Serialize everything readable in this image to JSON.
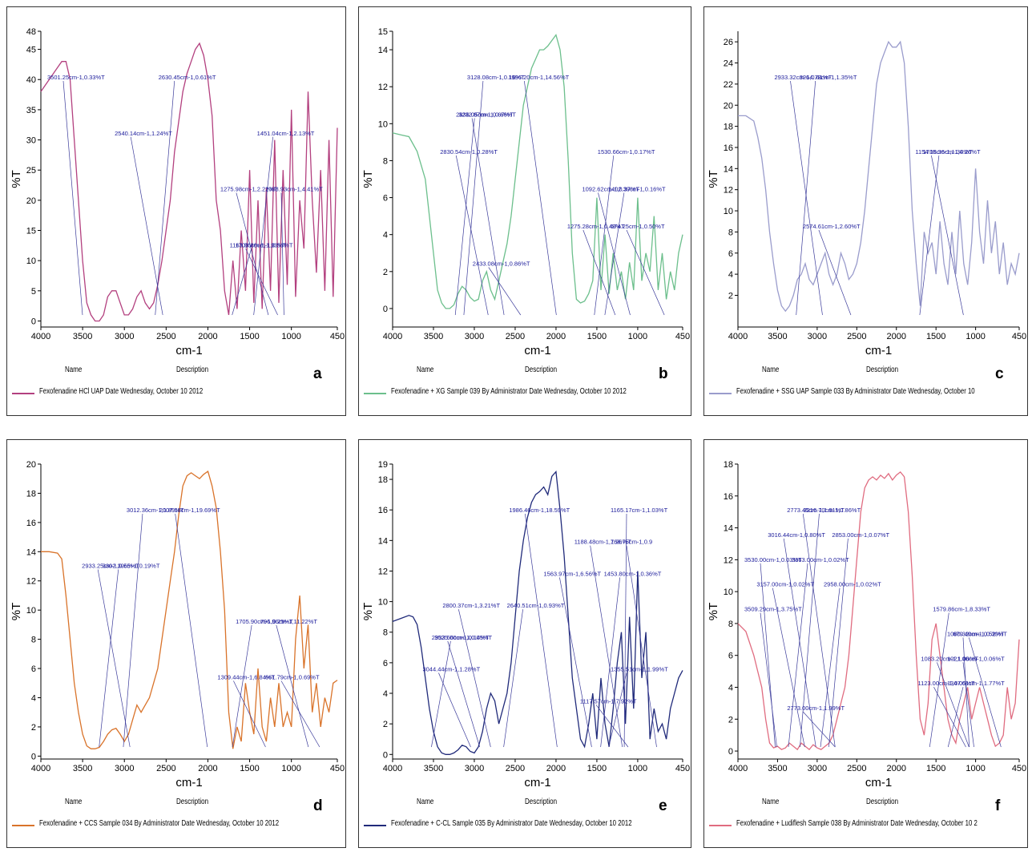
{
  "footer_labels": {
    "name": "Name",
    "description": "Description"
  },
  "chart_data": [
    {
      "type": "line",
      "letter": "a",
      "color": "#b3407f",
      "legend": "Fexofenadine HCl    UAP Date Wednesday, October 10 2012",
      "xlabel": "cm-1",
      "ylabel": "%T",
      "xlim": [
        4000,
        450
      ],
      "ylim": [
        -1,
        48
      ],
      "xticks": [
        "4000",
        "3500",
        "3000",
        "2500",
        "2000",
        "1500",
        "1000",
        "450"
      ],
      "yticks": [
        "0",
        "5",
        "10",
        "15",
        "20",
        "25",
        "30",
        "35",
        "40",
        "45",
        "48"
      ],
      "x": [
        4000,
        3900,
        3800,
        3750,
        3700,
        3650,
        3600,
        3550,
        3500,
        3450,
        3400,
        3350,
        3300,
        3250,
        3200,
        3150,
        3100,
        3050,
        3000,
        2950,
        2900,
        2850,
        2800,
        2750,
        2700,
        2650,
        2600,
        2550,
        2500,
        2450,
        2400,
        2350,
        2300,
        2250,
        2200,
        2150,
        2100,
        2050,
        2000,
        1950,
        1900,
        1850,
        1800,
        1750,
        1700,
        1650,
        1600,
        1550,
        1500,
        1450,
        1400,
        1350,
        1300,
        1250,
        1200,
        1150,
        1100,
        1050,
        1000,
        950,
        900,
        850,
        800,
        750,
        700,
        650,
        600,
        550,
        500,
        450
      ],
      "y": [
        38,
        40,
        42,
        43,
        43,
        40,
        30,
        20,
        10,
        3,
        1,
        0,
        0,
        1,
        4,
        5,
        5,
        3,
        1,
        1,
        2,
        4,
        5,
        3,
        2,
        3,
        6,
        10,
        15,
        20,
        28,
        33,
        38,
        41,
        43,
        45,
        46,
        44,
        40,
        34,
        20,
        15,
        5,
        1,
        10,
        2,
        15,
        5,
        25,
        3,
        20,
        2,
        22,
        5,
        30,
        3,
        25,
        6,
        35,
        4,
        20,
        12,
        38,
        20,
        8,
        25,
        5,
        30,
        4,
        32
      ],
      "annotations": [
        "3501.25cm-1,0.33%T",
        "2630.45cm-1,0.61%T",
        "2540.14cm-1,1.24%T",
        "1451.04cm-1,2.13%T",
        "1275.98cm-1,2.22%T",
        "1088.93cm-1,4.41%T",
        "1163.96cm-1,1.93%T",
        "1709.86cm-1,0.53%T"
      ]
    },
    {
      "type": "line",
      "letter": "b",
      "color": "#6cbf8c",
      "legend": "Fexofenadine + XG    Sample 039 By Administrator Date Wednesday, October 10 2012",
      "xlabel": "cm-1",
      "ylabel": "%T",
      "xlim": [
        4000,
        450
      ],
      "ylim": [
        -1,
        15
      ],
      "xticks": [
        "4000",
        "3500",
        "3000",
        "2500",
        "2000",
        "1500",
        "1000",
        "450"
      ],
      "yticks": [
        "0",
        "2",
        "4",
        "6",
        "8",
        "10",
        "12",
        "14",
        "15"
      ],
      "x": [
        4000,
        3900,
        3800,
        3700,
        3600,
        3550,
        3500,
        3450,
        3400,
        3350,
        3300,
        3250,
        3200,
        3150,
        3100,
        3050,
        3000,
        2950,
        2900,
        2850,
        2800,
        2750,
        2700,
        2650,
        2600,
        2550,
        2500,
        2450,
        2400,
        2350,
        2300,
        2250,
        2200,
        2150,
        2100,
        2050,
        2000,
        1950,
        1900,
        1850,
        1800,
        1750,
        1700,
        1650,
        1600,
        1550,
        1500,
        1450,
        1400,
        1350,
        1300,
        1250,
        1200,
        1150,
        1100,
        1050,
        1000,
        950,
        900,
        850,
        800,
        750,
        700,
        650,
        600,
        550,
        500,
        450
      ],
      "y": [
        9.5,
        9.4,
        9.3,
        8.5,
        7,
        5,
        3,
        1,
        0.3,
        0,
        0,
        0.2,
        0.8,
        1.2,
        1,
        0.6,
        0.4,
        0.5,
        1.5,
        2,
        1,
        0.5,
        1.5,
        2.5,
        3.5,
        5,
        7,
        9,
        11,
        12,
        13,
        13.5,
        14,
        14,
        14.2,
        14.5,
        14.8,
        14,
        12,
        8,
        3,
        0.5,
        0.3,
        0.4,
        0.8,
        1.5,
        6,
        1,
        4,
        0.8,
        3,
        1,
        2,
        0.5,
        2.5,
        1,
        6,
        1.5,
        3,
        2,
        5,
        1,
        3,
        0.5,
        2,
        1,
        3,
        4
      ],
      "annotations": [
        "1996.20cm-1,14.56%T",
        "3128.08cm-1,0.16%T",
        "2636.05cm-1,0.67%T",
        "3232.87cm-1,0.66%T",
        "2830.54cm-1,0.28%T",
        "1530.66cm-1,0.17%T",
        "1092.62cm-1,0.37%T",
        "1402.39cm-1,0.16%T",
        "1275.28cm-1,0.48%T",
        "674.25cm-1,0.50%T",
        "2433.08cm-1,0.86%T"
      ]
    },
    {
      "type": "line",
      "letter": "c",
      "color": "#9a9ccc",
      "legend": "Fexofenadine + SSG    UAP Sample 033 By Administrator Date Wednesday, October 10",
      "xlabel": "cm-1",
      "ylabel": "%T",
      "xlim": [
        4000,
        450
      ],
      "ylim": [
        -1,
        27
      ],
      "xticks": [
        "4000",
        "3500",
        "3000",
        "2500",
        "2000",
        "1500",
        "1000",
        "450"
      ],
      "yticks": [
        "2",
        "4",
        "6",
        "8",
        "10",
        "12",
        "14",
        "16",
        "18",
        "20",
        "22",
        "24",
        "26"
      ],
      "x": [
        4000,
        3900,
        3800,
        3750,
        3700,
        3650,
        3600,
        3550,
        3500,
        3450,
        3400,
        3350,
        3300,
        3250,
        3200,
        3150,
        3100,
        3050,
        3000,
        2950,
        2900,
        2850,
        2800,
        2750,
        2700,
        2650,
        2600,
        2550,
        2500,
        2450,
        2400,
        2350,
        2300,
        2250,
        2200,
        2150,
        2100,
        2050,
        2000,
        1950,
        1900,
        1850,
        1800,
        1750,
        1700,
        1650,
        1600,
        1550,
        1500,
        1450,
        1400,
        1350,
        1300,
        1250,
        1200,
        1150,
        1100,
        1050,
        1000,
        950,
        900,
        850,
        800,
        750,
        700,
        650,
        600,
        550,
        500,
        450
      ],
      "y": [
        19,
        19,
        18.5,
        17,
        15,
        12,
        8,
        5,
        2.5,
        1,
        0.5,
        1,
        2,
        3.5,
        4,
        5,
        3.5,
        3,
        4,
        5,
        6,
        4,
        3,
        4,
        6,
        5,
        3.5,
        4,
        5,
        7,
        10,
        14,
        18,
        22,
        24,
        25,
        26,
        25.5,
        25.5,
        26,
        24,
        18,
        10,
        5,
        1,
        8,
        6,
        7,
        4,
        9,
        5,
        3,
        8,
        4,
        10,
        5,
        3,
        7,
        14,
        8,
        5,
        11,
        6,
        9,
        4,
        7,
        3,
        5,
        4,
        6
      ],
      "annotations": [
        "2933.32cm-1,0.61%T",
        "3264.78cm-1,1.35%T",
        "1154.18cm-1,1.34%T",
        "1705.36cm-1,0.26%T",
        "2574.61cm-1,2.60%T"
      ]
    },
    {
      "type": "line",
      "letter": "d",
      "color": "#d9732a",
      "legend": "Fexofenadine + CCS    Sample 034 By Administrator Date Wednesday, October 10 2012",
      "xlabel": "cm-1",
      "ylabel": "%T",
      "xlim": [
        4000,
        450
      ],
      "ylim": [
        -0.2,
        20
      ],
      "xticks": [
        "4000",
        "3500",
        "3000",
        "2500",
        "2000",
        "1500",
        "1000",
        "450"
      ],
      "yticks": [
        "0",
        "2",
        "4",
        "6",
        "8",
        "10",
        "12",
        "14",
        "16",
        "18",
        "20"
      ],
      "x": [
        4000,
        3900,
        3800,
        3750,
        3700,
        3650,
        3600,
        3550,
        3500,
        3450,
        3400,
        3350,
        3300,
        3250,
        3200,
        3150,
        3100,
        3050,
        3000,
        2950,
        2900,
        2850,
        2800,
        2750,
        2700,
        2650,
        2600,
        2550,
        2500,
        2450,
        2400,
        2350,
        2300,
        2250,
        2200,
        2150,
        2100,
        2050,
        2000,
        1950,
        1900,
        1850,
        1800,
        1750,
        1700,
        1650,
        1600,
        1550,
        1500,
        1450,
        1400,
        1350,
        1300,
        1250,
        1200,
        1150,
        1100,
        1050,
        1000,
        950,
        900,
        850,
        800,
        750,
        700,
        650,
        600,
        550,
        500,
        450
      ],
      "y": [
        14,
        14,
        13.9,
        13.5,
        11,
        8,
        5,
        3,
        1.5,
        0.7,
        0.5,
        0.5,
        0.6,
        1,
        1.5,
        1.8,
        1.9,
        1.5,
        1,
        1.5,
        2.5,
        3.5,
        3,
        3.5,
        4,
        5,
        6,
        8,
        10,
        12,
        14,
        16.5,
        18.5,
        19.2,
        19.4,
        19.2,
        19,
        19.3,
        19.5,
        18.5,
        17,
        14,
        10,
        3,
        0.5,
        2,
        1,
        5,
        3,
        1.5,
        6,
        2,
        1,
        4,
        2,
        5,
        2,
        3,
        2,
        8,
        11,
        6,
        9,
        3,
        5,
        2,
        4,
        3,
        5,
        5.2
      ],
      "annotations": [
        "2007.18cm-1,19.69%T",
        "3012.36cm-1,1.89%T",
        "2933.25cm-1,0.55%T",
        "3302.39cm-1,0.19%T",
        "796.96cm-1,11.22%T",
        "1705.90cm-1,0.25%T",
        "1309.44cm-1,6.84%T",
        "661.79cm-1,0.69%T"
      ]
    },
    {
      "type": "line",
      "letter": "e",
      "color": "#202a7a",
      "legend": "Fexofenadine + C-CL    Sample 035 By Administrator Date Wednesday, October 10 2012",
      "xlabel": "cm-1",
      "ylabel": "%T",
      "xlim": [
        4000,
        450
      ],
      "ylim": [
        -0.3,
        19
      ],
      "xticks": [
        "4000",
        "3500",
        "3000",
        "2500",
        "2000",
        "1500",
        "1000",
        "450"
      ],
      "yticks": [
        "0",
        "2",
        "4",
        "6",
        "8",
        "10",
        "12",
        "14",
        "16",
        "18",
        "19"
      ],
      "x": [
        4000,
        3900,
        3800,
        3750,
        3700,
        3650,
        3600,
        3550,
        3500,
        3450,
        3400,
        3350,
        3300,
        3250,
        3200,
        3150,
        3100,
        3050,
        3000,
        2950,
        2900,
        2850,
        2800,
        2750,
        2700,
        2650,
        2600,
        2550,
        2500,
        2450,
        2400,
        2350,
        2300,
        2250,
        2200,
        2150,
        2100,
        2050,
        2000,
        1950,
        1900,
        1850,
        1800,
        1750,
        1700,
        1650,
        1600,
        1550,
        1500,
        1450,
        1400,
        1350,
        1300,
        1250,
        1200,
        1150,
        1100,
        1050,
        1000,
        950,
        900,
        850,
        800,
        750,
        700,
        650,
        600,
        550,
        500,
        450
      ],
      "y": [
        8.7,
        8.9,
        9.1,
        9,
        8.5,
        7,
        5,
        3,
        1.5,
        0.5,
        0.1,
        0,
        0,
        0.1,
        0.3,
        0.6,
        0.5,
        0.2,
        0.1,
        0.5,
        1.5,
        3,
        4,
        3.5,
        2,
        3,
        4,
        6,
        9,
        12,
        14,
        15.5,
        16.5,
        17,
        17.2,
        17.5,
        17,
        18.2,
        18.5,
        16,
        13,
        9,
        5,
        3,
        1,
        0.5,
        2,
        4,
        1,
        5,
        2,
        0.5,
        3,
        6,
        8,
        2,
        9,
        3,
        12,
        5,
        8,
        1,
        3,
        1.5,
        2,
        1,
        3,
        4,
        5,
        5.5
      ],
      "annotations": [
        "1986.46cm-1,18.59%T",
        "1165.17cm-1,1.03%T",
        "1188.48cm-1,1.96%T",
        "768.75cm-1,0.9",
        "1563.97cm-1,6.56%T",
        "1453.80cm-1,0.36%T",
        "2800.37cm-1,3.21%T",
        "2640.51cm-1,0.93%T",
        "2933.66cm-1,0.14%T",
        "3525.00cm-1,0.05%T",
        "3044.44cm-1,1.28%T",
        "1355.51cm-1,1.99%T",
        "1117.57cm-1,7.92%T"
      ]
    },
    {
      "type": "line",
      "letter": "f",
      "color": "#e06c80",
      "legend": "Fexofenadine + Ludiflesh    Sample 038 By Administrator Date Wednesday, October 10 2",
      "xlabel": "cm-1",
      "ylabel": "%T",
      "xlim": [
        4000,
        450
      ],
      "ylim": [
        -0.5,
        18
      ],
      "xticks": [
        "4000",
        "3500",
        "3000",
        "2500",
        "2000",
        "1500",
        "1000",
        "450"
      ],
      "yticks": [
        "0",
        "2",
        "4",
        "6",
        "8",
        "10",
        "12",
        "14",
        "16",
        "18"
      ],
      "x": [
        4000,
        3900,
        3800,
        3750,
        3700,
        3650,
        3600,
        3550,
        3500,
        3450,
        3400,
        3350,
        3300,
        3250,
        3200,
        3150,
        3100,
        3050,
        3000,
        2950,
        2900,
        2850,
        2800,
        2750,
        2700,
        2650,
        2600,
        2550,
        2500,
        2450,
        2400,
        2350,
        2300,
        2250,
        2200,
        2150,
        2100,
        2050,
        2000,
        1950,
        1900,
        1850,
        1800,
        1750,
        1700,
        1650,
        1600,
        1550,
        1500,
        1450,
        1400,
        1350,
        1300,
        1250,
        1200,
        1150,
        1100,
        1050,
        1000,
        950,
        900,
        850,
        800,
        750,
        700,
        650,
        600,
        550,
        500,
        450
      ],
      "y": [
        8,
        7.5,
        6,
        5,
        4,
        2,
        0.5,
        0.2,
        0.3,
        0.1,
        0.2,
        0.5,
        0.3,
        0.1,
        0.5,
        0.3,
        0.1,
        0.4,
        0.2,
        0.1,
        0.3,
        0.5,
        1,
        2,
        3,
        4,
        6,
        9,
        12,
        15,
        16.5,
        17,
        17.2,
        17,
        17.3,
        17.1,
        17.4,
        17,
        17.3,
        17.5,
        17.2,
        15,
        11,
        6,
        2,
        1,
        3,
        7,
        8,
        6,
        4,
        2,
        1,
        0.5,
        2,
        3,
        4,
        2,
        3,
        4,
        3,
        2,
        1,
        0.3,
        0.5,
        1,
        4,
        2,
        3,
        7
      ],
      "annotations": [
        "2773.45cm-1,1.01%T",
        "3216.70cm-1,0.86%T",
        "3016.44cm-1,0.80%T",
        "2853.00cm-1,0.07%T",
        "3530.00cm-1,0.03%T",
        "3363.00cm-1,0.02%T",
        "3157.00cm-1,0.02%T",
        "2958.00cm-1,0.02%T",
        "3509.29cm-1,3.75%T",
        "1579.86cm-1,8.33%T",
        "679.40cm-1,0.30%T",
        "1080.32cm-1,0.52%T",
        "1083.20cm-1,1.06%T",
        "1021.00cm-1,0.06%T",
        "1123.00cm-1,0.05%T",
        "1347.61cm-1,1.77%T",
        "2773.00cm-1,1.99%T"
      ]
    }
  ]
}
